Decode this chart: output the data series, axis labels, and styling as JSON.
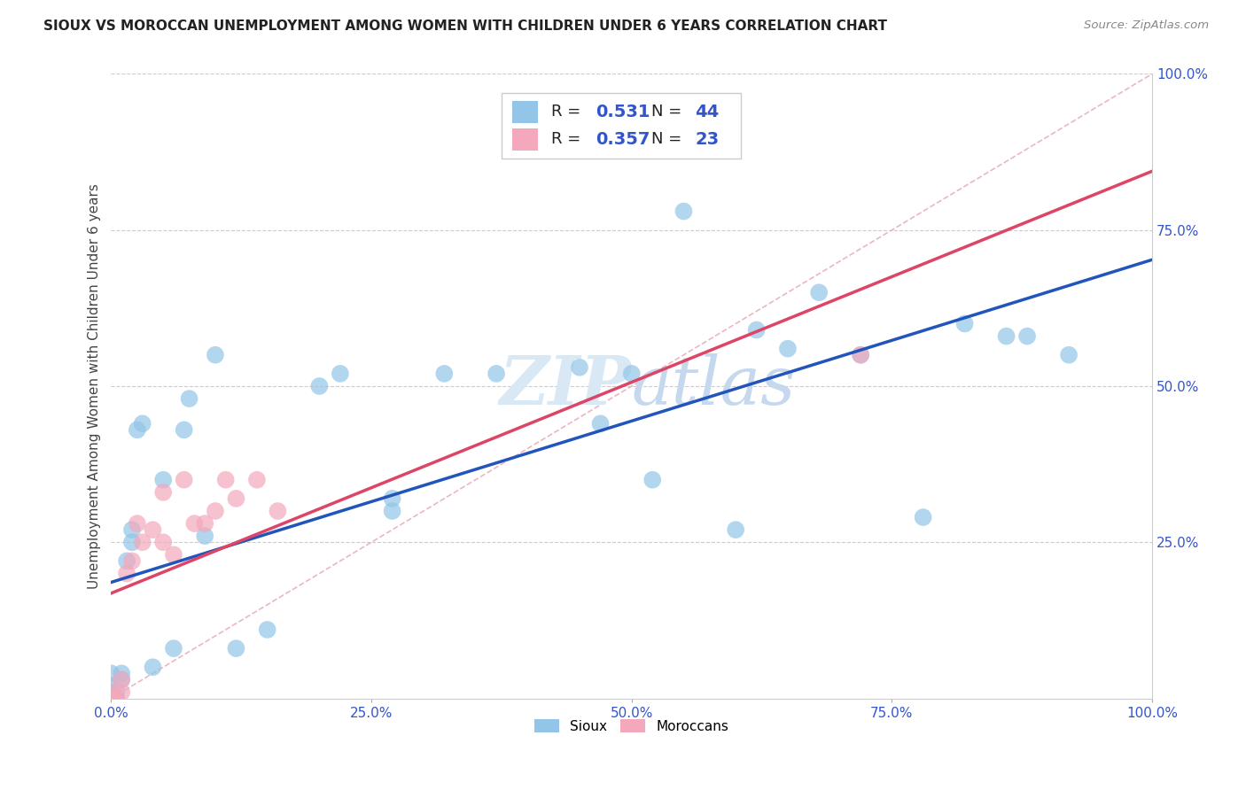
{
  "title": "SIOUX VS MOROCCAN UNEMPLOYMENT AMONG WOMEN WITH CHILDREN UNDER 6 YEARS CORRELATION CHART",
  "source": "Source: ZipAtlas.com",
  "ylabel": "Unemployment Among Women with Children Under 6 years",
  "sioux_R": "0.531",
  "sioux_N": "44",
  "moroccan_R": "0.357",
  "moroccan_N": "23",
  "xlim": [
    0.0,
    1.0
  ],
  "ylim": [
    0.0,
    1.0
  ],
  "xtick_labels": [
    "0.0%",
    "25.0%",
    "50.0%",
    "75.0%",
    "100.0%"
  ],
  "xtick_vals": [
    0.0,
    0.25,
    0.5,
    0.75,
    1.0
  ],
  "ytick_labels": [
    "25.0%",
    "50.0%",
    "75.0%",
    "100.0%"
  ],
  "ytick_vals": [
    0.25,
    0.5,
    0.75,
    1.0
  ],
  "sioux_color": "#92C5E8",
  "moroccan_color": "#F4A8BC",
  "sioux_line_color": "#2255BB",
  "moroccan_line_color": "#DD4466",
  "diagonal_color": "#E8B0B8",
  "label_color": "#3355CC",
  "background_color": "#FFFFFF",
  "sioux_x": [
    0.0,
    0.0,
    0.0,
    0.0,
    0.0,
    0.005,
    0.005,
    0.01,
    0.01,
    0.015,
    0.02,
    0.02,
    0.025,
    0.03,
    0.04,
    0.05,
    0.06,
    0.07,
    0.075,
    0.09,
    0.1,
    0.12,
    0.15,
    0.2,
    0.22,
    0.27,
    0.27,
    0.32,
    0.37,
    0.45,
    0.47,
    0.5,
    0.52,
    0.55,
    0.6,
    0.62,
    0.65,
    0.68,
    0.72,
    0.78,
    0.82,
    0.86,
    0.88,
    0.92
  ],
  "sioux_y": [
    0.0,
    0.0,
    0.01,
    0.02,
    0.04,
    0.0,
    0.01,
    0.03,
    0.04,
    0.22,
    0.25,
    0.27,
    0.43,
    0.44,
    0.05,
    0.35,
    0.08,
    0.43,
    0.48,
    0.26,
    0.55,
    0.08,
    0.11,
    0.5,
    0.52,
    0.3,
    0.32,
    0.52,
    0.52,
    0.53,
    0.44,
    0.52,
    0.35,
    0.78,
    0.27,
    0.59,
    0.56,
    0.65,
    0.55,
    0.29,
    0.6,
    0.58,
    0.58,
    0.55
  ],
  "moroccan_x": [
    0.0,
    0.0,
    0.0,
    0.005,
    0.01,
    0.01,
    0.015,
    0.02,
    0.025,
    0.03,
    0.04,
    0.05,
    0.05,
    0.06,
    0.07,
    0.08,
    0.09,
    0.1,
    0.11,
    0.12,
    0.14,
    0.16,
    0.72
  ],
  "moroccan_y": [
    0.0,
    0.0,
    0.01,
    0.0,
    0.01,
    0.03,
    0.2,
    0.22,
    0.28,
    0.25,
    0.27,
    0.25,
    0.33,
    0.23,
    0.35,
    0.28,
    0.28,
    0.3,
    0.35,
    0.32,
    0.35,
    0.3,
    0.55
  ]
}
